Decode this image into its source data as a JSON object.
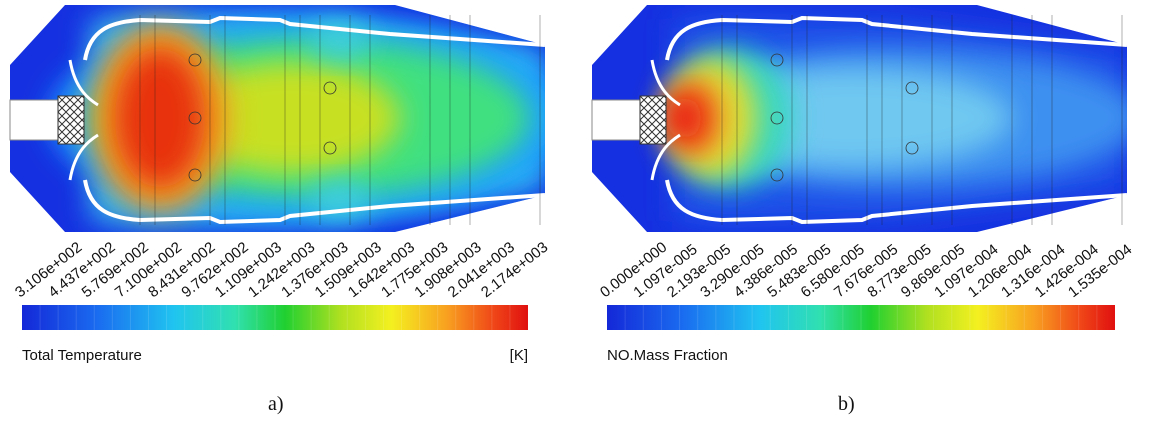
{
  "panels": [
    {
      "label": "a)",
      "colorbar": {
        "title": "Total Temperature",
        "unit": "[K]",
        "ticks": [
          "3.106e+002",
          "4.437e+002",
          "5.769e+002",
          "7.100e+002",
          "8.431e+002",
          "9.762e+002",
          "1.109e+003",
          "1.242e+003",
          "1.376e+003",
          "1.509e+003",
          "1.642e+003",
          "1.775e+003",
          "1.908e+003",
          "2.041e+003",
          "2.174e+003"
        ]
      }
    },
    {
      "label": "b)",
      "colorbar": {
        "title": "NO.Mass Fraction",
        "ticks": [
          "0.000e+000",
          "1.097e-005",
          "2.193e-005",
          "3.290e-005",
          "4.386e-005",
          "5.483e-005",
          "6.580e-005",
          "7.676e-005",
          "8.773e-005",
          "9.869e-005",
          "1.097e-004",
          "1.206e-004",
          "1.316e-004",
          "1.426e-004",
          "1.535e-004"
        ]
      }
    }
  ]
}
